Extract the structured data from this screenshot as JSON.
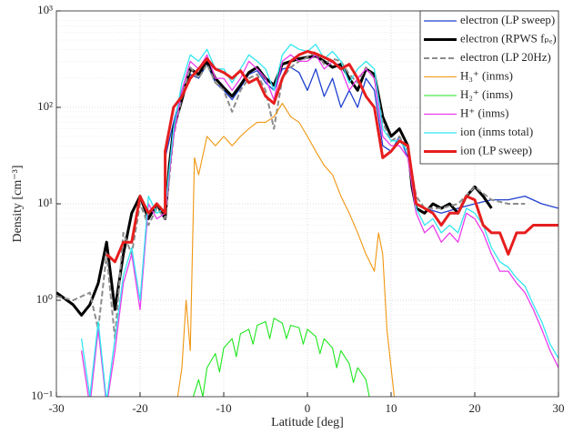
{
  "chart_data": {
    "type": "line",
    "xlabel": "Latitude [deg]",
    "ylabel": "Density [cm⁻³]",
    "log_y": true,
    "grid": true,
    "legend": "upper right",
    "xlim": [
      -30,
      30
    ],
    "xticks": [
      -30,
      -20,
      -10,
      0,
      10,
      20,
      30
    ],
    "ylim": [
      0.1,
      1000
    ],
    "yticks": [
      {
        "value": 0.1,
        "label": "10⁻¹"
      },
      {
        "value": 1,
        "label": "10⁰"
      },
      {
        "value": 10,
        "label": "10¹"
      },
      {
        "value": 100,
        "label": "10²"
      },
      {
        "value": 1000,
        "label": "10³"
      }
    ],
    "series": [
      {
        "name": "electron (LP sweep)",
        "color": "#1f3fcf",
        "width": 1.3,
        "x": [
          -17,
          -16,
          -15,
          -14,
          -13,
          -12,
          -11,
          -10,
          -9,
          -8,
          -7,
          -6,
          -5,
          -4,
          -3,
          -2,
          -1,
          0,
          1,
          2,
          3,
          4,
          5,
          6,
          7,
          8,
          9,
          10,
          11,
          12,
          13,
          14,
          16,
          18,
          20,
          22,
          24,
          26,
          28,
          30
        ],
        "values": [
          30,
          70,
          150,
          220,
          200,
          280,
          180,
          150,
          120,
          160,
          220,
          240,
          180,
          150,
          250,
          260,
          230,
          150,
          250,
          130,
          200,
          100,
          150,
          100,
          200,
          150,
          40,
          35,
          50,
          30,
          10,
          9,
          8,
          9,
          10,
          11,
          11,
          12,
          10,
          9
        ]
      },
      {
        "name": "electron (RPWS fₚₑ)",
        "color": "#000000",
        "width": 3,
        "x": [
          -30,
          -28,
          -27,
          -26,
          -25,
          -24,
          -23,
          -22,
          -21,
          -20,
          -19,
          -18,
          -17,
          -16.5,
          -16,
          -15,
          -14,
          -13,
          -12,
          -11,
          -10,
          -9,
          -8,
          -7,
          -6,
          -5,
          -4,
          -3,
          -2,
          -1,
          0,
          1,
          2,
          3,
          4,
          5,
          6,
          7,
          8,
          9,
          10,
          11,
          12,
          12.5,
          13,
          14,
          15,
          16,
          17,
          18,
          19,
          20,
          21,
          22
        ],
        "values": [
          1.2,
          0.9,
          0.7,
          0.9,
          1.5,
          4,
          0.8,
          3,
          8,
          12,
          7,
          10,
          7,
          25,
          60,
          120,
          250,
          220,
          300,
          200,
          160,
          130,
          170,
          230,
          260,
          200,
          170,
          280,
          300,
          320,
          330,
          340,
          300,
          260,
          280,
          200,
          150,
          250,
          220,
          80,
          50,
          60,
          40,
          15,
          9,
          8,
          10,
          9,
          10,
          8,
          12,
          15,
          12,
          9
        ]
      },
      {
        "name": "electron (LP 20Hz)",
        "color": "#8c8c8c",
        "width": 2,
        "style": "dashed",
        "x": [
          -30,
          -28,
          -26,
          -25,
          -24,
          -23,
          -22,
          -21,
          -20,
          -19,
          -18,
          -17,
          -16,
          -15,
          -14,
          -13,
          -12,
          -11,
          -10,
          -9,
          -8,
          -7,
          -6,
          -5,
          -4,
          -3,
          -2,
          -1,
          0,
          1,
          2,
          3,
          4,
          5,
          6,
          7,
          8,
          9,
          10,
          11,
          12,
          13,
          14,
          16,
          18,
          20,
          22,
          24,
          26
        ],
        "values": [
          1.1,
          1.0,
          1.2,
          0.5,
          3,
          0.4,
          5,
          3,
          10,
          6,
          9,
          7,
          50,
          130,
          260,
          200,
          280,
          180,
          150,
          90,
          150,
          200,
          220,
          150,
          60,
          200,
          260,
          300,
          330,
          380,
          280,
          320,
          300,
          220,
          180,
          260,
          200,
          70,
          45,
          50,
          35,
          12,
          9,
          9,
          10,
          15,
          11,
          10,
          10
        ]
      },
      {
        "name": "H₃⁺ (inms)",
        "color": "#f0960f",
        "width": 1.1,
        "x": [
          -15.5,
          -15,
          -14.5,
          -14,
          -13.5,
          -13,
          -12,
          -11,
          -10,
          -9,
          -8,
          -7,
          -6,
          -5,
          -4,
          -3,
          -2,
          -1,
          0,
          1,
          2,
          3,
          4,
          5,
          6,
          7,
          8,
          8.5,
          9,
          9.5,
          10,
          10.5
        ],
        "values": [
          0.1,
          0.2,
          1,
          0.3,
          30,
          20,
          50,
          40,
          50,
          40,
          50,
          60,
          70,
          70,
          80,
          110,
          80,
          70,
          50,
          35,
          25,
          20,
          12,
          8,
          5,
          3,
          2,
          5,
          3,
          0.5,
          0.2,
          0.08
        ]
      },
      {
        "name": "H₂⁺ (inms)",
        "color": "#1ee61e",
        "width": 1.1,
        "x": [
          -14,
          -13,
          -12.5,
          -12,
          -11,
          -10.5,
          -10,
          -9,
          -8.5,
          -8,
          -7,
          -6.5,
          -6,
          -5,
          -4.5,
          -4,
          -3,
          -2.5,
          -2,
          -1,
          -0.5,
          0,
          1,
          1.5,
          2,
          3,
          3.5,
          4,
          5,
          5.5,
          6,
          7,
          7.5,
          8
        ],
        "values": [
          0.08,
          0.15,
          0.1,
          0.2,
          0.28,
          0.18,
          0.32,
          0.4,
          0.26,
          0.45,
          0.5,
          0.35,
          0.55,
          0.6,
          0.4,
          0.65,
          0.58,
          0.4,
          0.55,
          0.52,
          0.35,
          0.5,
          0.42,
          0.28,
          0.4,
          0.32,
          0.2,
          0.3,
          0.22,
          0.14,
          0.2,
          0.15,
          0.09,
          0.08
        ]
      },
      {
        "name": "H⁺ (inms)",
        "color": "#eb3ceb",
        "width": 1.3,
        "x": [
          -27,
          -26,
          -25,
          -24,
          -23,
          -22,
          -21,
          -20,
          -19,
          -18,
          -17,
          -16,
          -15,
          -14,
          -13,
          -12,
          -11,
          -10,
          -9,
          -8,
          -7,
          -6,
          -5,
          -4,
          -3,
          -2,
          -1,
          0,
          1,
          2,
          3,
          4,
          5,
          6,
          7,
          8,
          9,
          10,
          11,
          12,
          13,
          14,
          15,
          16,
          17,
          18,
          19,
          20,
          21,
          22,
          23,
          24,
          25,
          26,
          27,
          28,
          29,
          30
        ],
        "values": [
          0.3,
          0.08,
          0.5,
          0.08,
          0.3,
          1.5,
          3,
          0.8,
          10,
          7,
          8,
          50,
          150,
          300,
          250,
          350,
          200,
          200,
          150,
          200,
          300,
          250,
          200,
          120,
          300,
          350,
          300,
          300,
          350,
          250,
          300,
          250,
          150,
          200,
          250,
          200,
          50,
          40,
          40,
          30,
          8,
          5,
          6,
          4,
          5,
          4,
          8,
          7,
          5,
          3,
          2,
          2,
          1.5,
          1.2,
          0.8,
          0.5,
          0.3,
          0.2
        ]
      },
      {
        "name": "ion (inms total)",
        "color": "#32e6f0",
        "width": 1.3,
        "x": [
          -27,
          -26,
          -25,
          -24,
          -23,
          -22,
          -21,
          -20,
          -19,
          -18,
          -17,
          -16,
          -15,
          -14,
          -13,
          -12,
          -11,
          -10,
          -9,
          -8,
          -7,
          -6,
          -5,
          -4,
          -3,
          -2,
          -1,
          0,
          1,
          2,
          3,
          4,
          5,
          6,
          7,
          8,
          9,
          10,
          11,
          12,
          13,
          14,
          15,
          16,
          17,
          18,
          19,
          20,
          21,
          22,
          23,
          24,
          25,
          26,
          27,
          28,
          29,
          30
        ],
        "values": [
          0.4,
          0.1,
          0.6,
          0.09,
          0.4,
          1.8,
          3.5,
          1,
          12,
          8,
          9,
          60,
          180,
          350,
          300,
          400,
          250,
          250,
          180,
          250,
          350,
          300,
          250,
          150,
          350,
          450,
          400,
          380,
          450,
          320,
          380,
          300,
          180,
          250,
          300,
          250,
          60,
          45,
          45,
          35,
          9,
          6,
          7,
          5,
          6,
          5,
          9,
          8,
          6,
          3.5,
          2.5,
          2.2,
          1.7,
          1.4,
          0.9,
          0.6,
          0.35,
          0.25
        ]
      },
      {
        "name": "ion (LP sweep)",
        "color": "#e61e1e",
        "width": 3,
        "x": [
          -24,
          -23,
          -22,
          -21,
          -20,
          -19,
          -18,
          -17,
          -17,
          -16,
          -15,
          -14,
          -13,
          -12,
          -11,
          -10,
          -9,
          -8,
          -7,
          -6,
          -5,
          -4,
          -3,
          -2,
          -1,
          0,
          1,
          2,
          3,
          4,
          5,
          6,
          7,
          8,
          9,
          10,
          11,
          12,
          13,
          14,
          15,
          16,
          17,
          18,
          19,
          20,
          21,
          22,
          23,
          24,
          25,
          26,
          27,
          28,
          29,
          30
        ],
        "values": [
          3,
          2.5,
          4,
          4,
          12,
          8,
          10,
          8,
          35,
          100,
          130,
          200,
          250,
          320,
          250,
          230,
          200,
          240,
          180,
          200,
          130,
          110,
          200,
          300,
          350,
          380,
          360,
          330,
          300,
          250,
          280,
          200,
          130,
          100,
          30,
          35,
          45,
          40,
          10,
          9,
          8,
          6,
          8,
          8,
          12,
          11,
          6,
          5,
          5,
          3,
          5,
          5,
          6,
          6,
          6,
          6
        ]
      }
    ]
  }
}
